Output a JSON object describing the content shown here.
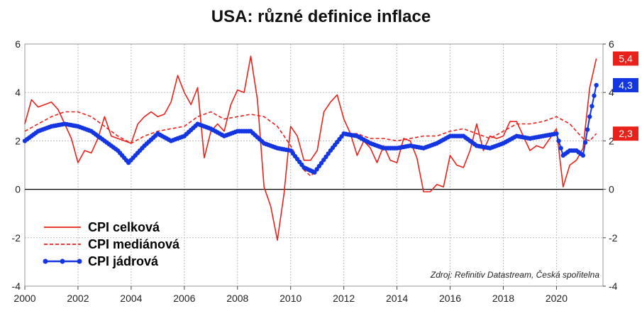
{
  "chart_data": {
    "type": "line",
    "title": "USA: různé definice inflace",
    "xlabel": "",
    "ylabel": "",
    "xlim": [
      2000,
      2021.75
    ],
    "ylim": [
      -4,
      6
    ],
    "x_ticks": [
      "2000",
      "2002",
      "2004",
      "2006",
      "2008",
      "2010",
      "2012",
      "2014",
      "2016",
      "2018",
      "2020"
    ],
    "y_ticks_left": [
      "6",
      "4",
      "2",
      "0",
      "-2",
      "-4"
    ],
    "y_ticks_right": [
      "6",
      "4",
      "2",
      "0",
      "-2",
      "-4"
    ],
    "grid": true,
    "legend_position": "bottom-left",
    "source_note": "Zdroj: Refinitiv Datastream, Česká spořitelna",
    "series": [
      {
        "name": "CPI celková",
        "color": "#e8221b",
        "style": "solid",
        "end_label": "5,4",
        "points": [
          [
            2000.0,
            2.7
          ],
          [
            2000.25,
            3.7
          ],
          [
            2000.5,
            3.4
          ],
          [
            2000.75,
            3.5
          ],
          [
            2001.0,
            3.6
          ],
          [
            2001.25,
            3.3
          ],
          [
            2001.5,
            2.7
          ],
          [
            2001.75,
            2.1
          ],
          [
            2002.0,
            1.1
          ],
          [
            2002.25,
            1.6
          ],
          [
            2002.5,
            1.5
          ],
          [
            2002.75,
            2.1
          ],
          [
            2003.0,
            3.0
          ],
          [
            2003.25,
            2.2
          ],
          [
            2003.5,
            2.1
          ],
          [
            2003.75,
            2.0
          ],
          [
            2004.0,
            1.9
          ],
          [
            2004.25,
            2.7
          ],
          [
            2004.5,
            3.0
          ],
          [
            2004.75,
            3.2
          ],
          [
            2005.0,
            3.0
          ],
          [
            2005.25,
            3.1
          ],
          [
            2005.5,
            3.6
          ],
          [
            2005.75,
            4.7
          ],
          [
            2006.0,
            4.0
          ],
          [
            2006.25,
            3.5
          ],
          [
            2006.5,
            4.2
          ],
          [
            2006.75,
            1.3
          ],
          [
            2007.0,
            2.4
          ],
          [
            2007.25,
            2.7
          ],
          [
            2007.5,
            2.4
          ],
          [
            2007.75,
            3.5
          ],
          [
            2008.0,
            4.1
          ],
          [
            2008.25,
            4.0
          ],
          [
            2008.5,
            5.5
          ],
          [
            2008.75,
            3.7
          ],
          [
            2009.0,
            0.1
          ],
          [
            2009.25,
            -0.7
          ],
          [
            2009.5,
            -2.1
          ],
          [
            2009.75,
            -0.2
          ],
          [
            2010.0,
            2.6
          ],
          [
            2010.25,
            2.2
          ],
          [
            2010.5,
            1.2
          ],
          [
            2010.75,
            1.2
          ],
          [
            2011.0,
            1.6
          ],
          [
            2011.25,
            3.2
          ],
          [
            2011.5,
            3.6
          ],
          [
            2011.75,
            3.9
          ],
          [
            2012.0,
            2.9
          ],
          [
            2012.25,
            2.3
          ],
          [
            2012.5,
            1.4
          ],
          [
            2012.75,
            2.0
          ],
          [
            2013.0,
            1.7
          ],
          [
            2013.25,
            1.1
          ],
          [
            2013.5,
            1.8
          ],
          [
            2013.75,
            1.2
          ],
          [
            2014.0,
            1.1
          ],
          [
            2014.25,
            2.1
          ],
          [
            2014.5,
            2.0
          ],
          [
            2014.75,
            1.3
          ],
          [
            2015.0,
            -0.1
          ],
          [
            2015.25,
            -0.1
          ],
          [
            2015.5,
            0.2
          ],
          [
            2015.75,
            0.1
          ],
          [
            2016.0,
            1.4
          ],
          [
            2016.25,
            1.0
          ],
          [
            2016.5,
            0.9
          ],
          [
            2016.75,
            1.6
          ],
          [
            2017.0,
            2.7
          ],
          [
            2017.25,
            1.6
          ],
          [
            2017.5,
            2.2
          ],
          [
            2017.75,
            2.1
          ],
          [
            2018.0,
            2.2
          ],
          [
            2018.25,
            2.8
          ],
          [
            2018.5,
            2.8
          ],
          [
            2018.75,
            2.2
          ],
          [
            2019.0,
            1.6
          ],
          [
            2019.25,
            1.8
          ],
          [
            2019.5,
            1.7
          ],
          [
            2019.75,
            2.1
          ],
          [
            2020.0,
            2.5
          ],
          [
            2020.25,
            0.1
          ],
          [
            2020.5,
            1.0
          ],
          [
            2020.75,
            1.2
          ],
          [
            2021.0,
            1.7
          ],
          [
            2021.25,
            4.2
          ],
          [
            2021.5,
            5.4
          ]
        ]
      },
      {
        "name": "CPI mediánová",
        "color": "#e8221b",
        "style": "dashed",
        "end_label": "2,3",
        "points": [
          [
            2000.0,
            2.4
          ],
          [
            2000.5,
            2.7
          ],
          [
            2001.0,
            3.0
          ],
          [
            2001.5,
            3.2
          ],
          [
            2002.0,
            3.2
          ],
          [
            2002.5,
            3.0
          ],
          [
            2003.0,
            2.6
          ],
          [
            2003.5,
            2.2
          ],
          [
            2004.0,
            1.9
          ],
          [
            2004.5,
            2.2
          ],
          [
            2005.0,
            2.4
          ],
          [
            2005.5,
            2.5
          ],
          [
            2006.0,
            2.6
          ],
          [
            2006.5,
            3.0
          ],
          [
            2007.0,
            3.2
          ],
          [
            2007.5,
            2.9
          ],
          [
            2008.0,
            3.0
          ],
          [
            2008.5,
            3.1
          ],
          [
            2009.0,
            3.0
          ],
          [
            2009.5,
            2.6
          ],
          [
            2010.0,
            1.8
          ],
          [
            2010.5,
            0.8
          ],
          [
            2010.75,
            0.55
          ],
          [
            2011.0,
            0.8
          ],
          [
            2011.5,
            1.6
          ],
          [
            2012.0,
            2.3
          ],
          [
            2012.5,
            2.3
          ],
          [
            2013.0,
            2.1
          ],
          [
            2013.5,
            2.1
          ],
          [
            2014.0,
            2.0
          ],
          [
            2014.5,
            2.1
          ],
          [
            2015.0,
            2.2
          ],
          [
            2015.5,
            2.2
          ],
          [
            2016.0,
            2.4
          ],
          [
            2016.5,
            2.5
          ],
          [
            2017.0,
            2.3
          ],
          [
            2017.5,
            2.1
          ],
          [
            2018.0,
            2.4
          ],
          [
            2018.5,
            2.7
          ],
          [
            2019.0,
            2.7
          ],
          [
            2019.5,
            2.8
          ],
          [
            2020.0,
            3.0
          ],
          [
            2020.5,
            2.7
          ],
          [
            2021.0,
            2.1
          ],
          [
            2021.25,
            2.0
          ],
          [
            2021.5,
            2.3
          ]
        ]
      },
      {
        "name": "CPI jádrová",
        "color": "#1436e0",
        "style": "solid-markers",
        "end_label": "4,3",
        "points": [
          [
            2000.0,
            2.0
          ],
          [
            2000.5,
            2.4
          ],
          [
            2001.0,
            2.6
          ],
          [
            2001.5,
            2.7
          ],
          [
            2002.0,
            2.6
          ],
          [
            2002.5,
            2.4
          ],
          [
            2003.0,
            2.0
          ],
          [
            2003.5,
            1.6
          ],
          [
            2003.9,
            1.1
          ],
          [
            2004.5,
            1.8
          ],
          [
            2005.0,
            2.3
          ],
          [
            2005.5,
            2.0
          ],
          [
            2006.0,
            2.2
          ],
          [
            2006.5,
            2.7
          ],
          [
            2007.0,
            2.5
          ],
          [
            2007.5,
            2.2
          ],
          [
            2008.0,
            2.4
          ],
          [
            2008.5,
            2.4
          ],
          [
            2009.0,
            1.9
          ],
          [
            2009.5,
            1.7
          ],
          [
            2010.0,
            1.6
          ],
          [
            2010.5,
            0.9
          ],
          [
            2010.9,
            0.7
          ],
          [
            2011.5,
            1.6
          ],
          [
            2012.0,
            2.3
          ],
          [
            2012.5,
            2.2
          ],
          [
            2013.0,
            1.9
          ],
          [
            2013.5,
            1.7
          ],
          [
            2014.0,
            1.7
          ],
          [
            2014.5,
            1.8
          ],
          [
            2015.0,
            1.7
          ],
          [
            2015.5,
            1.9
          ],
          [
            2016.0,
            2.2
          ],
          [
            2016.5,
            2.2
          ],
          [
            2017.0,
            1.8
          ],
          [
            2017.5,
            1.7
          ],
          [
            2018.0,
            1.9
          ],
          [
            2018.5,
            2.2
          ],
          [
            2019.0,
            2.1
          ],
          [
            2019.5,
            2.2
          ],
          [
            2020.0,
            2.3
          ],
          [
            2020.25,
            1.4
          ],
          [
            2020.5,
            1.6
          ],
          [
            2020.75,
            1.6
          ],
          [
            2021.0,
            1.4
          ],
          [
            2021.25,
            3.0
          ],
          [
            2021.5,
            4.3
          ]
        ]
      }
    ]
  }
}
